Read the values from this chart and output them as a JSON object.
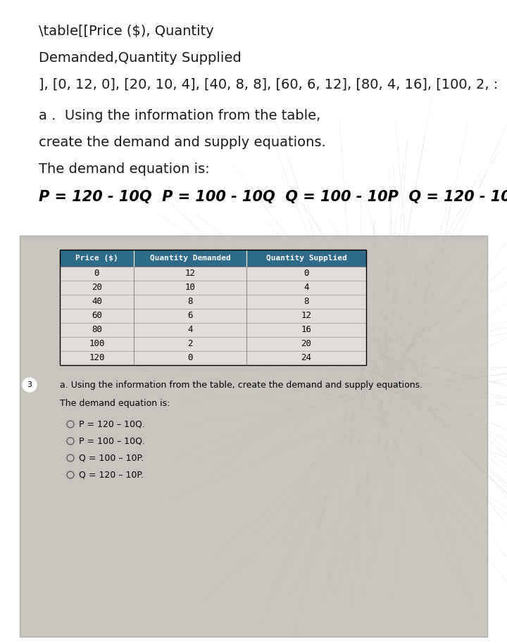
{
  "top_text_lines": [
    "\\table[[Price ($), Quantity",
    "Demanded,Quantity Supplied",
    "], [0, 12, 0], [20, 10, 4], [40, 8, 8], [60, 6, 12], [80, 4, 16], [100, 2, :"
  ],
  "question_line1": "a .  Using the information from the table,",
  "question_line2": "create the demand and supply equations.",
  "question_line3": "The demand equation is:",
  "table_headers": [
    "Price ($)",
    "Quantity Demanded",
    "Quantity Supplied"
  ],
  "table_data": [
    [
      0,
      12,
      0
    ],
    [
      20,
      10,
      4
    ],
    [
      40,
      8,
      8
    ],
    [
      60,
      6,
      12
    ],
    [
      80,
      4,
      16
    ],
    [
      100,
      2,
      20
    ],
    [
      120,
      0,
      24
    ]
  ],
  "sub_question": "a. Using the information from the table, create the demand and supply equations.",
  "sub_demand_label": "The demand equation is:",
  "options": [
    "P = 120 – 10Q.",
    "P = 100 – 10Q.",
    "Q = 100 – 10P.",
    "Q = 120 – 10P."
  ],
  "bg_color": "#ffffff",
  "box_bg_color": "#c8c4be",
  "header_bg_color": "#2e6b8a",
  "header_text_color": "#ffffff",
  "table_text_color": "#000000",
  "top_text_color": "#1a1a1a",
  "row_color_light": "#dedad5",
  "row_color_dark": "#ccc8c3"
}
